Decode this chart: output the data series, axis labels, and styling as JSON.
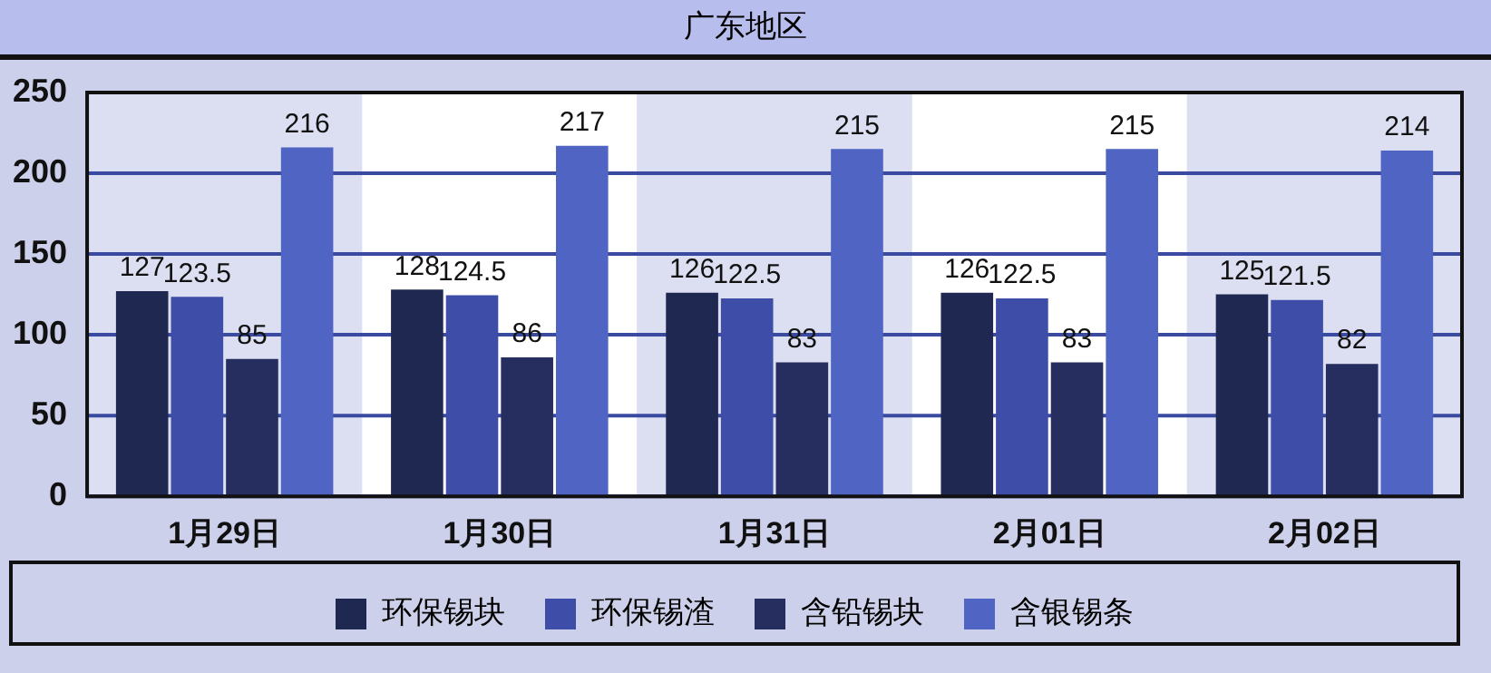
{
  "chart_data": {
    "type": "bar",
    "title": "广东地区",
    "categories": [
      "1月29日",
      "1月30日",
      "1月31日",
      "2月01日",
      "2月02日"
    ],
    "series": [
      {
        "name": "环保锡块",
        "color": "#1f2850",
        "values": [
          127,
          128,
          126,
          126,
          125
        ]
      },
      {
        "name": "环保锡渣",
        "color": "#3e4ea8",
        "values": [
          123.5,
          124.5,
          122.5,
          122.5,
          121.5
        ]
      },
      {
        "name": "含铅锡块",
        "color": "#262e60",
        "values": [
          85,
          86,
          83,
          83,
          82
        ]
      },
      {
        "name": "含银锡条",
        "color": "#5064c4",
        "values": [
          216,
          217,
          215,
          215,
          214
        ]
      }
    ],
    "ylim": [
      0,
      250
    ],
    "yticks": [
      0,
      50,
      100,
      150,
      200,
      250
    ],
    "grid": "y",
    "legend": "bottom",
    "data_labels": true
  }
}
